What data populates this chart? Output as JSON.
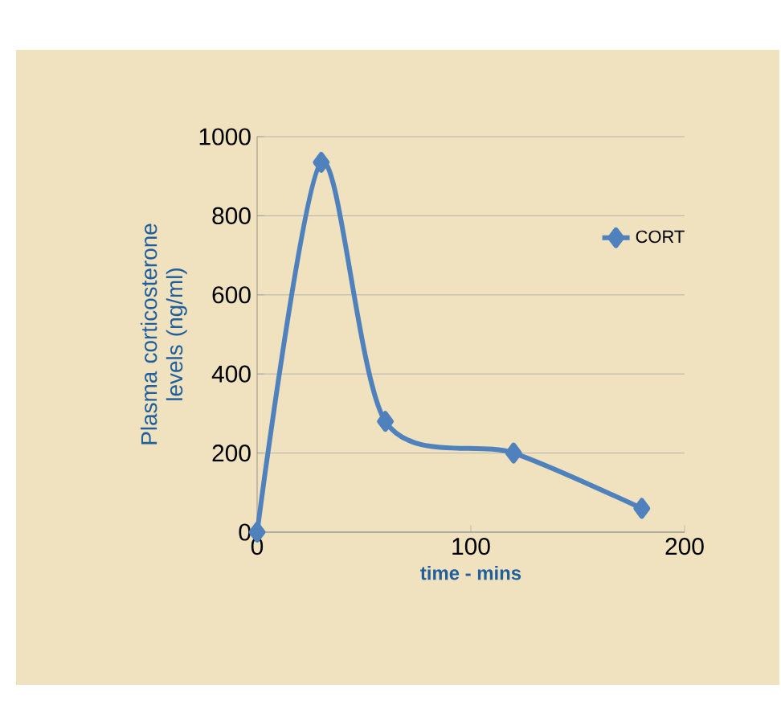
{
  "chart_data": {
    "type": "line",
    "xlabel": "time - mins",
    "ylabel": "Plasma corticosterone levels (ng/ml)",
    "x": [
      0,
      30,
      60,
      120,
      180
    ],
    "series": [
      {
        "name": "CORT",
        "color": "#4f81bd",
        "values": [
          0,
          935,
          280,
          200,
          60
        ]
      }
    ],
    "xlim": [
      0,
      200
    ],
    "xticks": [
      0,
      100,
      200
    ],
    "ylim": [
      0,
      1000
    ],
    "yticks": [
      0,
      200,
      400,
      600,
      800,
      1000
    ],
    "grid": "y",
    "legend": "right",
    "marker": "diamond"
  }
}
